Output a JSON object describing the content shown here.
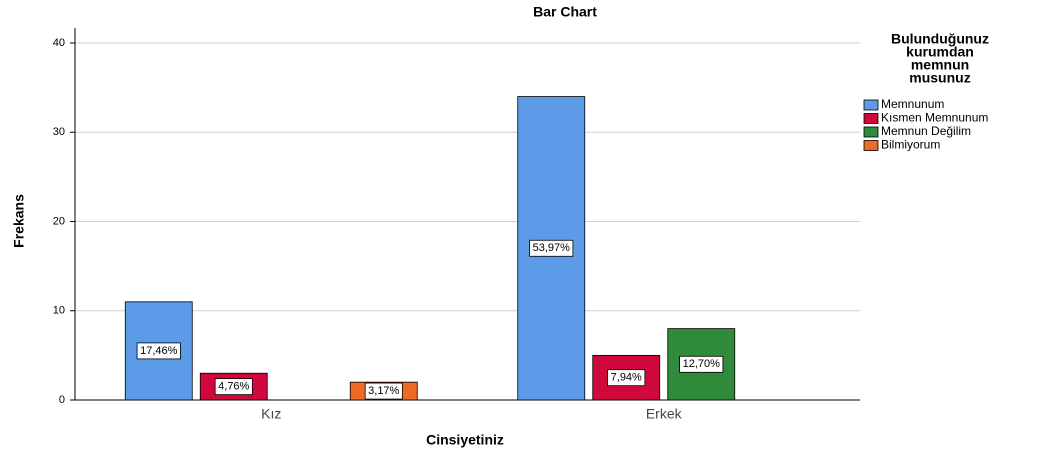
{
  "chart_data": {
    "type": "bar",
    "title": "Bar Chart",
    "x_label": "Cinsiyetiniz",
    "y_label": "Frekans",
    "categories": [
      "Kız",
      "Erkek"
    ],
    "series": [
      {
        "name": "Memnunum",
        "color": "#5b9be8",
        "values": [
          11,
          34
        ],
        "percent_labels": [
          "17,46%",
          "53,97%"
        ]
      },
      {
        "name": "Kısmen Memnunum",
        "color": "#d0083c",
        "values": [
          3,
          5
        ],
        "percent_labels": [
          "4,76%",
          "7,94%"
        ]
      },
      {
        "name": "Memnun Değilim",
        "color": "#2f8a3a",
        "values": [
          null,
          8
        ],
        "percent_labels": [
          null,
          "12,70%"
        ]
      },
      {
        "name": "Bilmiyorum",
        "color": "#ee6b25",
        "values": [
          2,
          null
        ],
        "percent_labels": [
          "3,17%",
          null
        ]
      }
    ],
    "legend_title": [
      "Bulunduğunuz",
      "kurumdan",
      "memnun",
      "musunuz"
    ],
    "legend_position": "right",
    "ylim": [
      0,
      40
    ],
    "yticks": [
      0,
      10,
      20,
      30,
      40
    ],
    "grid": true
  }
}
